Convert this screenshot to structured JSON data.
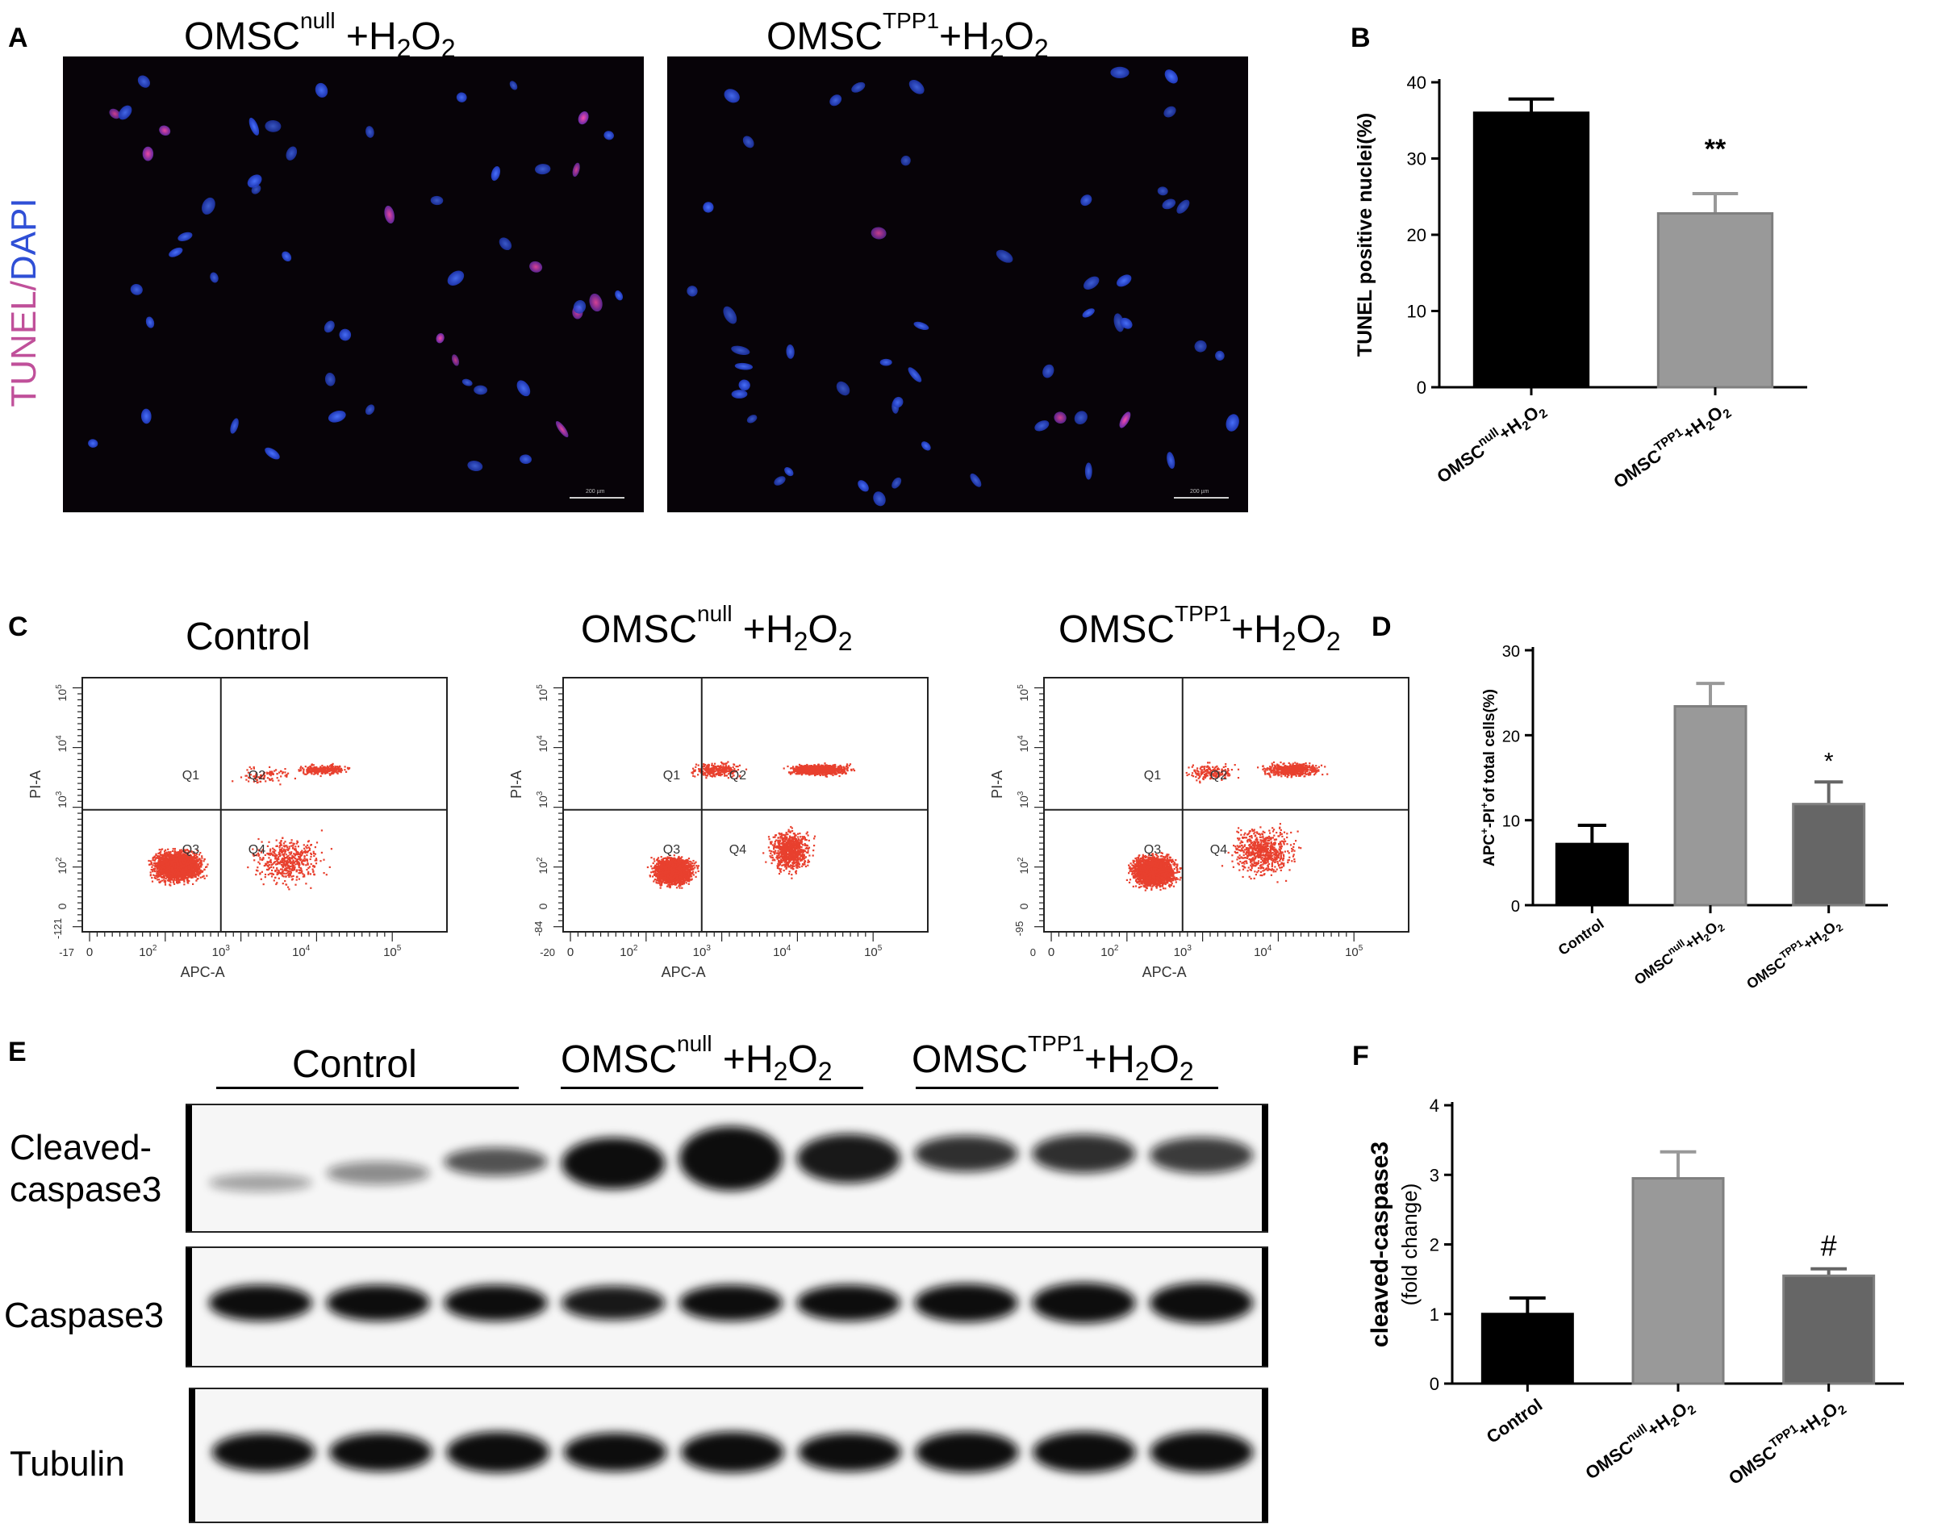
{
  "panel_labels": {
    "A": "A",
    "B": "B",
    "C": "C",
    "D": "D",
    "E": "E",
    "F": "F"
  },
  "panel_a": {
    "stain_tunel": "TUNEL",
    "stain_sep": "/",
    "stain_dapi": "DAPI",
    "colors": {
      "tunel": "#c0509a",
      "dapi": "#2f4fd6",
      "background": "#070308"
    },
    "images": [
      {
        "title_main": "OMSC",
        "title_sup": "null",
        "title_rest": " +H",
        "title_sub": "2",
        "title_end": "O",
        "title_sub2": "2",
        "scale_text": "200 µm"
      },
      {
        "title_main": "OMSC",
        "title_sup": "TPP1",
        "title_rest": "+H",
        "title_sub": "2",
        "title_end": "O",
        "title_sub2": "2",
        "scale_text": "200 µm"
      }
    ]
  },
  "panel_c": {
    "plots": [
      {
        "title": "Control",
        "q1": "Q1",
        "q2": "Q2",
        "q3": "Q3",
        "q4": "Q4",
        "xlabel": "APC-A",
        "ylabel": "PI-A",
        "x_min_tick": "-17",
        "y_min_tick": "-121"
      },
      {
        "title_main": "OMSC",
        "title_sup": "null",
        "title_rest": " +H",
        "title_sub": "2",
        "title_end": "O",
        "title_sub2": "2",
        "q1": "Q1",
        "q2": "Q2",
        "q3": "Q3",
        "q4": "Q4",
        "xlabel": "APC-A",
        "ylabel": "PI-A",
        "x_min_tick": "-20",
        "y_min_tick": "-84"
      },
      {
        "title_main": "OMSC",
        "title_sup": "TPP1",
        "title_rest": "+H",
        "title_sub": "2",
        "title_end": "O",
        "title_sub2": "2",
        "q1": "Q1",
        "q2": "Q2",
        "q3": "Q3",
        "q4": "Q4",
        "xlabel": "APC-A",
        "ylabel": "PI-A",
        "x_min_tick": "0",
        "y_min_tick": "-95"
      }
    ],
    "dot_color": "#e8402e",
    "tick_labels": {
      "x_zero": "0",
      "x_1": "10",
      "x_2": "10",
      "x_3": "10",
      "x_4": "10",
      "x_5": "10",
      "e2": "2",
      "e3": "3",
      "e4": "4",
      "e5": "5",
      "y_zero": "0"
    }
  },
  "panel_e": {
    "groups": [
      {
        "label_main": "Control"
      },
      {
        "label_main": "OMSC",
        "label_sup": "null",
        "label_rest": " +H",
        "label_sub": "2",
        "label_end": "O",
        "label_sub2": "2"
      },
      {
        "label_main": "OMSC",
        "label_sup": "TPP1",
        "label_rest": "+H",
        "label_sub": "2",
        "label_end": "O",
        "label_sub2": "2"
      }
    ],
    "rows": [
      {
        "label_line1": "Cleaved-",
        "label_line2": "caspase3"
      },
      {
        "label": "Caspase3"
      },
      {
        "label": "Tubulin"
      }
    ]
  },
  "chart_data": [
    {
      "panel": "B",
      "type": "bar",
      "categories": [
        "OMSCnull+H2O2",
        "OMSCTPP1+H2O2"
      ],
      "cat_main": [
        "OMSC",
        "OMSC"
      ],
      "cat_sup": [
        "null",
        "TPP1"
      ],
      "cat_h": [
        "+H",
        "+H"
      ],
      "cat_o": [
        "O",
        "O"
      ],
      "cat_sub": [
        "2",
        "2"
      ],
      "values": [
        36,
        22.8
      ],
      "errors": [
        1.8,
        2.6
      ],
      "colors": [
        "#000000",
        "#999999"
      ],
      "annotations": [
        "**"
      ],
      "annotation_index": [
        1
      ],
      "ylabel": "TUNEL positive nuclei(%)",
      "ylim": [
        0,
        40
      ],
      "yticks": [
        0,
        10,
        20,
        30,
        40
      ]
    },
    {
      "panel": "D",
      "type": "bar",
      "categories": [
        "Control",
        "OMSCnull+H2O2",
        "OMSCTPP1+H2O2"
      ],
      "cat_main": [
        "Control",
        "OMSC",
        "OMSC"
      ],
      "cat_sup": [
        "",
        "null",
        "TPP1"
      ],
      "cat_h": [
        "",
        "+H",
        "+H"
      ],
      "cat_o": [
        "",
        "O",
        "O"
      ],
      "cat_sub": [
        "",
        "2",
        "2"
      ],
      "values": [
        7.2,
        23.4,
        11.9
      ],
      "errors": [
        2.2,
        2.7,
        2.6
      ],
      "colors": [
        "#000000",
        "#999999",
        "#666666"
      ],
      "annotations": [
        "*"
      ],
      "annotation_index": [
        2
      ],
      "ylabel_parts": {
        "apc": "APC",
        "plus1": "+",
        "pi": "-PI",
        "plus2": "+",
        "rest": "of total cells(%)"
      },
      "ylim": [
        0,
        30
      ],
      "yticks": [
        0,
        10,
        20,
        30
      ]
    },
    {
      "panel": "F",
      "type": "bar",
      "categories": [
        "Control",
        "OMSCnull+H2O2",
        "OMSCTPP1+H2O2"
      ],
      "cat_main": [
        "Control",
        "OMSC",
        "OMSC"
      ],
      "cat_sup": [
        "",
        "null",
        "TPP1"
      ],
      "cat_h": [
        "",
        "+H",
        "+H"
      ],
      "cat_o": [
        "",
        "O",
        "O"
      ],
      "cat_sub": [
        "",
        "2",
        "2"
      ],
      "values": [
        1.0,
        2.95,
        1.55
      ],
      "errors": [
        0.23,
        0.38,
        0.1
      ],
      "colors": [
        "#000000",
        "#999999",
        "#666666"
      ],
      "annotations": [
        "#"
      ],
      "annotation_index": [
        2
      ],
      "ylabel": "cleaved-caspase3",
      "ylabel2": "(fold change)",
      "ylim": [
        0,
        4
      ],
      "yticks": [
        0,
        1,
        2,
        3,
        4
      ]
    }
  ]
}
